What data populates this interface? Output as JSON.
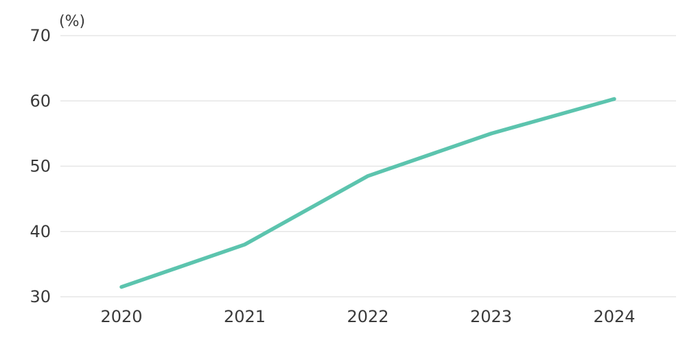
{
  "chart_data": {
    "type": "line",
    "x": [
      "2020",
      "2021",
      "2022",
      "2023",
      "2024"
    ],
    "series": [
      {
        "values": [
          31.5,
          38,
          48.5,
          55,
          60.3
        ]
      }
    ],
    "title": "",
    "xlabel": "",
    "ylabel": "(%)",
    "ylim": [
      30,
      70
    ],
    "yticks": [
      30,
      40,
      50,
      60,
      70
    ],
    "grid": "horizontal",
    "legend": "none",
    "colors": {
      "series": "#5cc4ae",
      "grid": "#e6e6e6",
      "text": "#3a3a3a"
    }
  }
}
